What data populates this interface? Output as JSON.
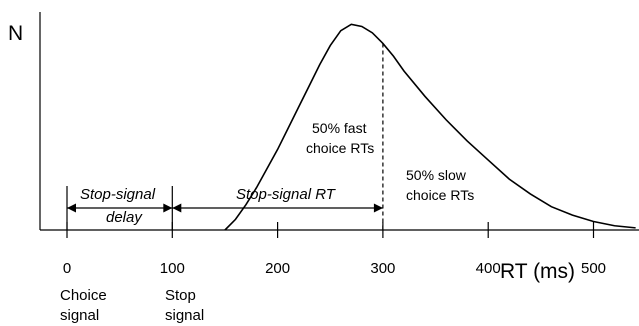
{
  "chart_data": {
    "type": "line",
    "x_ticks": [
      0,
      100,
      200,
      300,
      400,
      500
    ],
    "xlim": [
      0,
      540
    ],
    "ylabel": "N",
    "xlabel": "RT (ms)",
    "curve": {
      "onset_ms": 150,
      "peak_ms": 270,
      "points": [
        [
          150,
          0
        ],
        [
          160,
          0.05
        ],
        [
          170,
          0.12
        ],
        [
          180,
          0.2
        ],
        [
          190,
          0.29
        ],
        [
          200,
          0.38
        ],
        [
          210,
          0.48
        ],
        [
          220,
          0.58
        ],
        [
          230,
          0.68
        ],
        [
          240,
          0.78
        ],
        [
          250,
          0.87
        ],
        [
          260,
          0.94
        ],
        [
          270,
          0.97
        ],
        [
          280,
          0.96
        ],
        [
          290,
          0.93
        ],
        [
          300,
          0.88
        ],
        [
          310,
          0.82
        ],
        [
          320,
          0.75
        ],
        [
          340,
          0.63
        ],
        [
          360,
          0.52
        ],
        [
          380,
          0.42
        ],
        [
          400,
          0.33
        ],
        [
          420,
          0.24
        ],
        [
          440,
          0.17
        ],
        [
          460,
          0.11
        ],
        [
          480,
          0.07
        ],
        [
          500,
          0.04
        ],
        [
          520,
          0.02
        ],
        [
          540,
          0.01
        ]
      ]
    },
    "cut_ms": 300,
    "annotations": {
      "fast": [
        "50% fast",
        "choice RTs"
      ],
      "slow": [
        "50% slow",
        "choice RTs"
      ],
      "ssd": [
        "Stop-signal",
        "delay"
      ],
      "ssrt": "Stop-signal RT"
    },
    "event_labels": {
      "choice": [
        "Choice",
        "signal"
      ],
      "stop": [
        "Stop",
        "signal"
      ]
    },
    "intervals": {
      "ssd": [
        0,
        100
      ],
      "ssrt": [
        100,
        300
      ]
    }
  }
}
